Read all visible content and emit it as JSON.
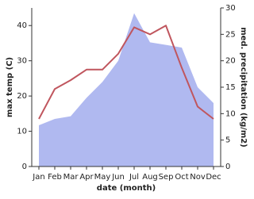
{
  "chart_data": {
    "type": "line_area",
    "categories": [
      "Jan",
      "Feb",
      "Mar",
      "Apr",
      "May",
      "Jun",
      "Jul",
      "Aug",
      "Sep",
      "Oct",
      "Nov",
      "Dec"
    ],
    "x_label": "date (month)",
    "y_label": "max temp (C)",
    "y2_label": "med. precipitation (kg/m2)",
    "ylim": [
      0,
      45
    ],
    "yticks": [
      0,
      10,
      20,
      30,
      40
    ],
    "y2lim": [
      0,
      30
    ],
    "y2ticks": [
      0,
      5,
      10,
      15,
      20,
      25,
      30
    ],
    "series": [
      {
        "name": "max temp",
        "type": "line",
        "color": "#c0565e",
        "values": [
          13.5,
          22,
          24.5,
          27.5,
          27.5,
          32,
          39.5,
          37.5,
          40,
          28,
          17,
          13.5
        ]
      },
      {
        "name": "med. precipitation",
        "type": "area",
        "axis": "y2",
        "color": "#b0b9f0",
        "values": [
          7.8,
          9,
          9.5,
          13,
          16,
          20,
          29,
          23.5,
          23,
          22.5,
          15,
          12
        ]
      }
    ]
  }
}
